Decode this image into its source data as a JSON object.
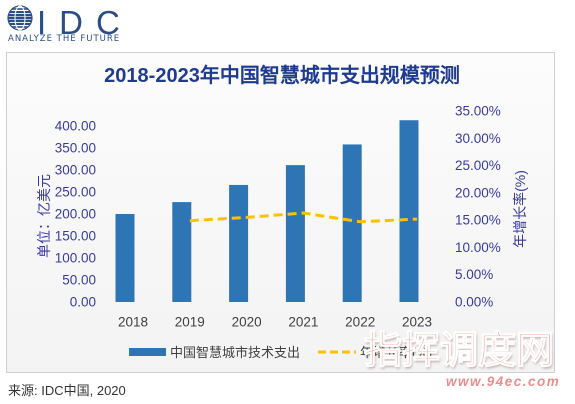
{
  "logo": {
    "brand": "IDC",
    "tagline": "ANALYZE THE FUTURE",
    "icon": "globe-icon",
    "color": "#2B4D86"
  },
  "chart_data": {
    "type": "bar",
    "title": "2018-2023年中国智慧城市支出规模预测",
    "categories": [
      "2018",
      "2019",
      "2020",
      "2021",
      "2022",
      "2023"
    ],
    "ylabel": "单位：亿美元",
    "y2label": "年增长率(%)",
    "ylim": [
      0,
      434
    ],
    "y2lim": [
      0,
      35
    ],
    "y_ticks": [
      0,
      50,
      100,
      150,
      200,
      250,
      300,
      350,
      400
    ],
    "y_tick_labels": [
      "0.00",
      "50.00",
      "100.00",
      "150.00",
      "200.00",
      "250.00",
      "300.00",
      "350.00",
      "400.00"
    ],
    "y2_ticks": [
      0,
      5,
      10,
      15,
      20,
      25,
      30,
      35
    ],
    "y2_tick_labels": [
      "0.00%",
      "5.00%",
      "10.00%",
      "15.00%",
      "20.00%",
      "25.00%",
      "30.00%",
      "35.00%"
    ],
    "series": [
      {
        "name": "中国智慧城市技术支出",
        "type": "bar",
        "axis": "left",
        "color": "#2E75B6",
        "values": [
          200,
          227,
          266,
          311,
          358,
          413
        ]
      },
      {
        "name": "年增长率(%)",
        "type": "line",
        "axis": "right",
        "line_style": "dashed",
        "color": "#FFC000",
        "values": [
          null,
          14.9,
          15.5,
          16.3,
          14.7,
          15.2
        ]
      }
    ],
    "grid": false,
    "legend": "bottom-center"
  },
  "watermark": {
    "text": "指挥调度网",
    "site": "www.94ec.com"
  },
  "source": "来源: IDC中国, 2020",
  "colors": {
    "title": "#1F3B8F",
    "axis_text": "#3A3AA0"
  }
}
